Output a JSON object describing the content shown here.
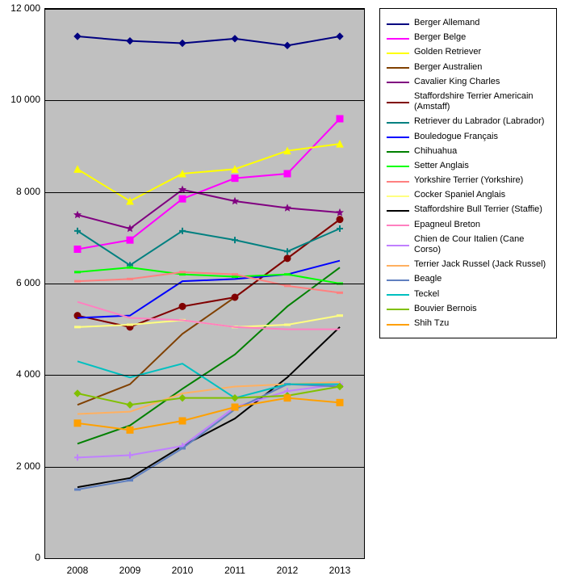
{
  "chart": {
    "type": "line",
    "background_color": "#c0c0c0",
    "grid_color": "#000000",
    "x": {
      "categories": [
        "2008",
        "2009",
        "2010",
        "2011",
        "2012",
        "2013"
      ]
    },
    "y": {
      "min": 0,
      "max": 12000,
      "step": 2000,
      "labels": [
        "0",
        "2 000",
        "4 000",
        "6 000",
        "8 000",
        "10 000",
        "12 000"
      ]
    },
    "line_width": 2,
    "marker_size": 8,
    "series": [
      {
        "name": "Berger Allemand",
        "color": "#000080",
        "marker": "diamond",
        "values": [
          11400,
          11300,
          11250,
          11350,
          11200,
          11400
        ]
      },
      {
        "name": "Berger Belge",
        "color": "#ff00ff",
        "marker": "square",
        "values": [
          6750,
          6950,
          7850,
          8300,
          8400,
          9600
        ]
      },
      {
        "name": "Golden Retriever",
        "color": "#ffff00",
        "marker": "triangle",
        "values": [
          8500,
          7800,
          8400,
          8500,
          8900,
          9050
        ]
      },
      {
        "name": "Berger Australien",
        "color": "#804000",
        "marker": "none",
        "values": [
          3350,
          3800,
          4900,
          5700,
          6550,
          7400
        ]
      },
      {
        "name": "Cavalier King Charles",
        "color": "#800080",
        "marker": "star",
        "values": [
          7500,
          7200,
          8050,
          7800,
          7650,
          7550
        ]
      },
      {
        "name": "Staffordshire Terrier Americain (Amstaff)",
        "color": "#800000",
        "marker": "circle",
        "values": [
          5300,
          5050,
          5500,
          5700,
          6550,
          7400
        ]
      },
      {
        "name": "Retriever du Labrador (Labrador)",
        "color": "#008080",
        "marker": "plus",
        "values": [
          7150,
          6400,
          7150,
          6950,
          6700,
          7200
        ]
      },
      {
        "name": "Bouledogue Français",
        "color": "#0000ff",
        "marker": "none",
        "values": [
          5250,
          5300,
          6050,
          6100,
          6200,
          6500
        ]
      },
      {
        "name": "Chihuahua",
        "color": "#008000",
        "marker": "none",
        "values": [
          2500,
          2900,
          3700,
          4450,
          5500,
          6350
        ]
      },
      {
        "name": "Setter Anglais",
        "color": "#00ff00",
        "marker": "dash",
        "values": [
          6250,
          6350,
          6200,
          6150,
          6200,
          6000
        ]
      },
      {
        "name": "Yorkshire Terrier (Yorkshire)",
        "color": "#ff8080",
        "marker": "dash",
        "values": [
          6050,
          6100,
          6250,
          6200,
          5950,
          5800
        ]
      },
      {
        "name": "Cocker Spaniel Anglais",
        "color": "#ffff80",
        "marker": "dash",
        "values": [
          5050,
          5100,
          5200,
          5050,
          5100,
          5300
        ]
      },
      {
        "name": "Staffordshire Bull Terrier (Staffie)",
        "color": "#000000",
        "marker": "none",
        "values": [
          1550,
          1750,
          2450,
          3050,
          3950,
          5050
        ]
      },
      {
        "name": "Epagneul Breton",
        "color": "#ff80c0",
        "marker": "none",
        "values": [
          5600,
          5250,
          5200,
          5050,
          5000,
          5000
        ]
      },
      {
        "name": "Chien de Cour Italien (Cane Corso)",
        "color": "#c080ff",
        "marker": "plus",
        "values": [
          2200,
          2250,
          2450,
          3300,
          3650,
          3800
        ]
      },
      {
        "name": "Terrier Jack Russel (Jack Russel)",
        "color": "#ffb060",
        "marker": "none",
        "values": [
          3150,
          3200,
          3600,
          3750,
          3800,
          3850
        ]
      },
      {
        "name": "Beagle",
        "color": "#6080c0",
        "marker": "dash",
        "values": [
          1500,
          1700,
          2400,
          3250,
          3800,
          3750
        ]
      },
      {
        "name": "Teckel",
        "color": "#00c0c0",
        "marker": "none",
        "values": [
          4300,
          3950,
          4250,
          3500,
          3800,
          3800
        ]
      },
      {
        "name": "Bouvier Bernois",
        "color": "#80c000",
        "marker": "diamond",
        "values": [
          3600,
          3350,
          3500,
          3500,
          3550,
          3750
        ]
      },
      {
        "name": "Shih Tzu",
        "color": "#ffa000",
        "marker": "square",
        "values": [
          2950,
          2800,
          3000,
          3300,
          3500,
          3400
        ]
      }
    ]
  }
}
